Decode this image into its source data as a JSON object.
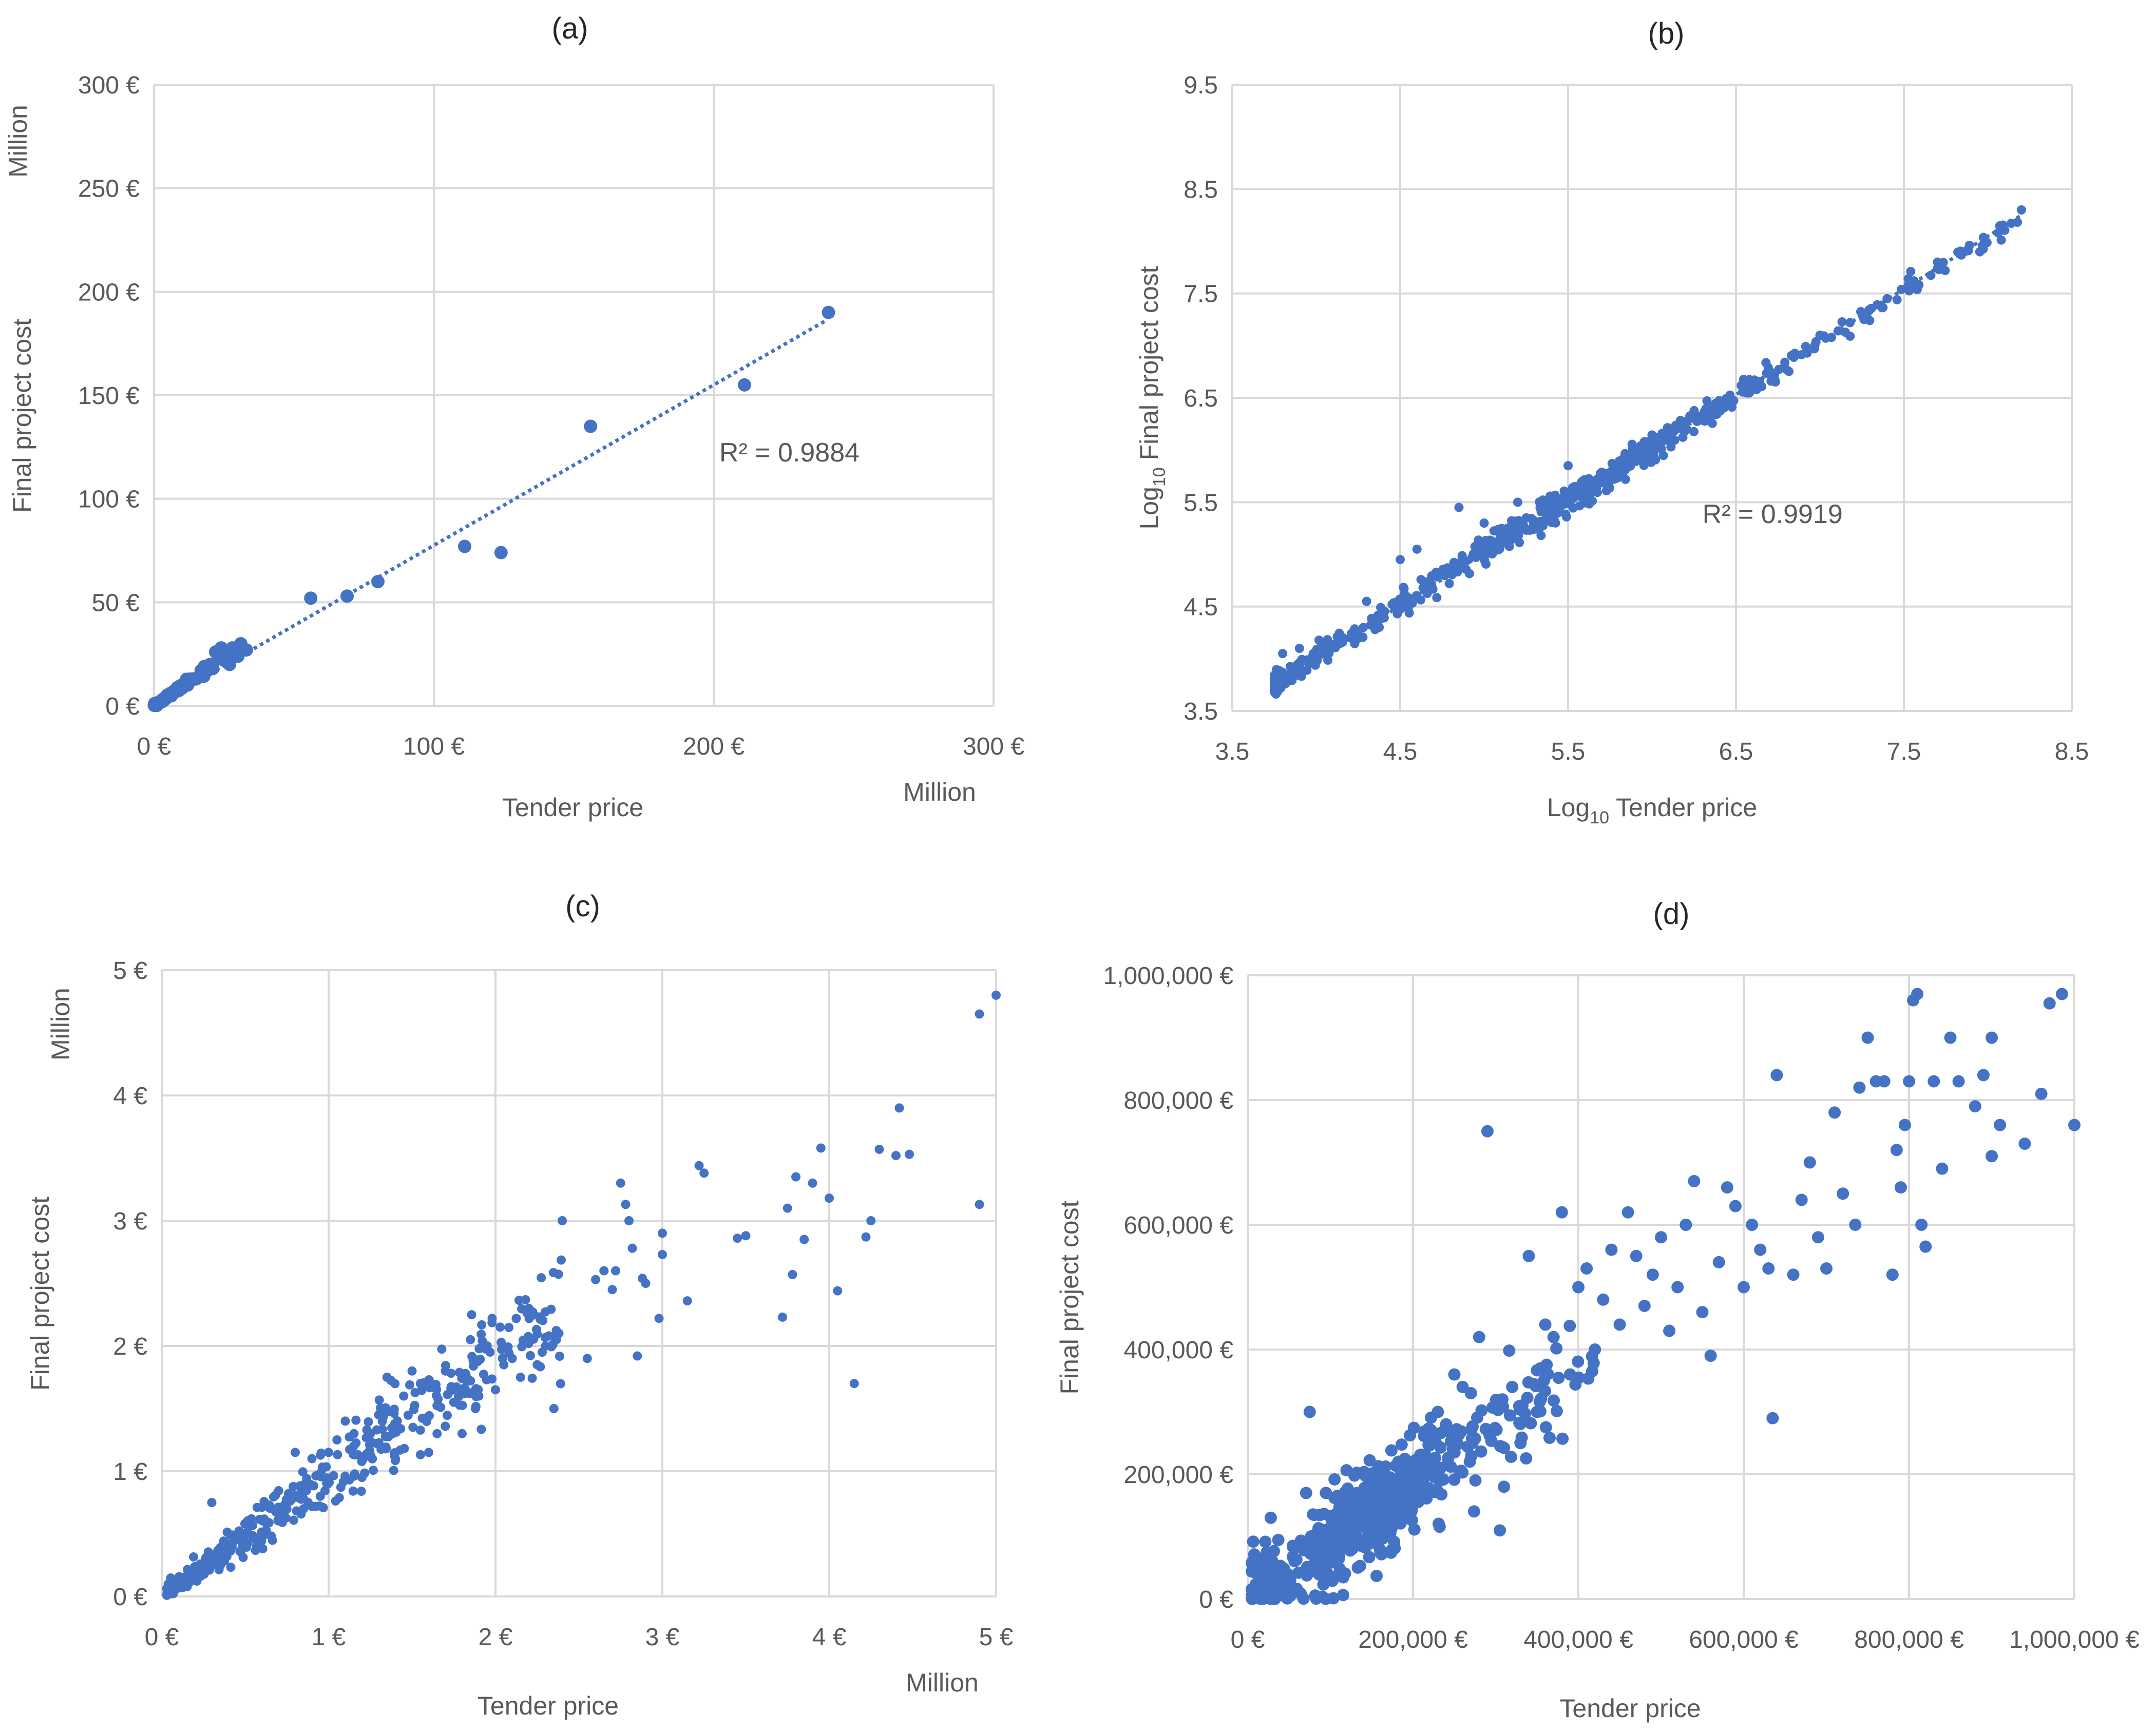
{
  "figure": {
    "panels": [
      "(a)",
      "(b)",
      "(c)",
      "(d)"
    ]
  },
  "colors": {
    "marker": "#4472C4",
    "grid": "#D9D9D9",
    "text": "#595959",
    "title": "#262626"
  },
  "chart_data": [
    {
      "id": "a",
      "panel_label": "(a)",
      "type": "scatter",
      "xlabel": "Tender price",
      "ylabel": "Final project cost",
      "x_unit_label": "Million",
      "y_unit_label": "Million",
      "xlim": [
        0,
        300
      ],
      "ylim": [
        0,
        300
      ],
      "xticks": [
        0,
        100,
        200,
        300
      ],
      "yticks": [
        0,
        50,
        100,
        150,
        200,
        250,
        300
      ],
      "xtick_labels": [
        "0 €",
        "100 €",
        "200 €",
        "300 €"
      ],
      "ytick_labels": [
        "0 €",
        "50 €",
        "100 €",
        "150 €",
        "200 €",
        "250 €",
        "300 €"
      ],
      "annotation": "R² = 0.9884",
      "annotation_at": [
        202,
        118
      ],
      "trendline": {
        "style": "dotted",
        "from": [
          0,
          0
        ],
        "to": [
          240,
          186
        ]
      },
      "cluster": {
        "n": 60,
        "xmax": 18,
        "slope": 0.95,
        "noise": 0.6,
        "seed": 11
      },
      "points": [
        [
          241,
          190
        ],
        [
          211,
          155
        ],
        [
          156,
          135
        ],
        [
          124,
          74
        ],
        [
          111,
          77
        ],
        [
          80,
          60
        ],
        [
          69,
          53
        ],
        [
          56,
          52
        ],
        [
          33,
          27
        ],
        [
          31,
          30
        ],
        [
          30,
          24
        ],
        [
          28,
          28
        ],
        [
          27,
          20
        ],
        [
          26,
          25
        ],
        [
          25,
          22
        ],
        [
          24,
          28
        ],
        [
          23,
          23
        ],
        [
          22,
          26
        ],
        [
          21,
          18
        ],
        [
          20,
          20
        ],
        [
          19,
          17
        ],
        [
          18,
          19
        ],
        [
          17,
          15
        ],
        [
          16,
          14
        ],
        [
          15,
          13
        ],
        [
          14,
          13
        ],
        [
          13,
          12
        ],
        [
          12,
          10
        ],
        [
          11,
          10
        ],
        [
          10,
          9
        ],
        [
          9,
          8
        ],
        [
          8,
          7
        ],
        [
          7,
          7
        ],
        [
          6,
          6
        ],
        [
          5,
          5
        ],
        [
          4,
          4
        ],
        [
          3,
          3
        ],
        [
          2,
          2
        ],
        [
          1,
          1
        ]
      ]
    },
    {
      "id": "b",
      "panel_label": "(b)",
      "type": "scatter",
      "xlabel_main": "Log",
      "xlabel_sub": "10",
      "xlabel_rest": " Tender price",
      "ylabel_main": "Log",
      "ylabel_sub": "10",
      "ylabel_rest": " Final project cost",
      "xlim": [
        3.5,
        8.5
      ],
      "ylim": [
        3.5,
        9.5
      ],
      "xticks": [
        3.5,
        4.5,
        5.5,
        6.5,
        7.5,
        8.5
      ],
      "yticks": [
        3.5,
        4.5,
        5.5,
        6.5,
        7.5,
        8.5,
        9.5
      ],
      "xtick_labels": [
        "3.5",
        "4.5",
        "5.5",
        "6.5",
        "7.5",
        "8.5"
      ],
      "ytick_labels": [
        "3.5",
        "4.5",
        "5.5",
        "6.5",
        "7.5",
        "8.5",
        "9.5"
      ],
      "annotation": "R² = 0.9919",
      "annotation_at": [
        6.3,
        5.3
      ],
      "trendline": {
        "style": "dotted",
        "from": [
          3.75,
          3.75
        ],
        "to": [
          8.2,
          8.25
        ]
      },
      "cluster": {
        "n": 650,
        "xmin": 3.75,
        "xmax": 8.2,
        "slope": 1.0,
        "intercept": 0.02,
        "noise": 0.06,
        "dense_center": 5.6,
        "seed": 23
      },
      "points": [
        [
          3.75,
          3.8
        ],
        [
          3.8,
          4.05
        ],
        [
          3.9,
          4.1
        ],
        [
          4.3,
          4.55
        ],
        [
          4.5,
          4.95
        ],
        [
          4.6,
          5.05
        ],
        [
          4.85,
          5.45
        ],
        [
          5.0,
          5.3
        ],
        [
          5.2,
          5.5
        ],
        [
          5.5,
          5.85
        ],
        [
          8.2,
          8.3
        ],
        [
          7.7,
          7.8
        ],
        [
          7.4,
          7.45
        ],
        [
          7.0,
          7.1
        ]
      ]
    },
    {
      "id": "c",
      "panel_label": "(c)",
      "type": "scatter",
      "xlabel": "Tender price",
      "ylabel": "Final project cost",
      "x_unit_label": "Million",
      "y_unit_label": "Million",
      "xlim": [
        0,
        5
      ],
      "ylim": [
        0,
        5
      ],
      "xticks": [
        0,
        1,
        2,
        3,
        4,
        5
      ],
      "yticks": [
        0,
        1,
        2,
        3,
        4,
        5
      ],
      "xtick_labels": [
        "0 €",
        "1 €",
        "2 €",
        "3 €",
        "4 €",
        "5 €"
      ],
      "ytick_labels": [
        "0 €",
        "1 €",
        "2 €",
        "3 €",
        "4 €",
        "5 €"
      ],
      "cluster": {
        "n": 420,
        "xmin": 0.03,
        "xmax": 2.4,
        "slope": 0.95,
        "noise": 0.09,
        "seed": 37
      },
      "points": [
        [
          5.0,
          4.8
        ],
        [
          4.9,
          4.65
        ],
        [
          4.9,
          3.13
        ],
        [
          4.48,
          3.53
        ],
        [
          4.42,
          3.9
        ],
        [
          4.4,
          3.52
        ],
        [
          4.3,
          3.57
        ],
        [
          4.25,
          3.0
        ],
        [
          4.22,
          2.87
        ],
        [
          4.15,
          1.7
        ],
        [
          4.05,
          2.44
        ],
        [
          4.0,
          3.18
        ],
        [
          3.95,
          3.58
        ],
        [
          3.9,
          3.3
        ],
        [
          3.85,
          2.85
        ],
        [
          3.8,
          3.35
        ],
        [
          3.78,
          2.57
        ],
        [
          3.72,
          2.23
        ],
        [
          3.75,
          3.1
        ],
        [
          3.5,
          2.88
        ],
        [
          3.45,
          2.86
        ],
        [
          3.25,
          3.38
        ],
        [
          3.22,
          3.44
        ],
        [
          3.15,
          2.36
        ],
        [
          3.0,
          2.9
        ],
        [
          3.0,
          2.73
        ],
        [
          2.98,
          2.22
        ],
        [
          2.9,
          2.5
        ],
        [
          2.88,
          2.54
        ],
        [
          2.85,
          1.92
        ],
        [
          2.82,
          2.78
        ],
        [
          2.8,
          3.0
        ],
        [
          2.78,
          3.13
        ],
        [
          2.75,
          3.3
        ],
        [
          2.72,
          2.6
        ],
        [
          2.7,
          2.45
        ],
        [
          2.65,
          2.6
        ],
        [
          2.6,
          2.53
        ],
        [
          2.55,
          1.9
        ],
        [
          2.4,
          3.0
        ],
        [
          2.38,
          2.1
        ],
        [
          2.35,
          1.5
        ],
        [
          2.32,
          2.08
        ],
        [
          2.3,
          2.0
        ],
        [
          2.28,
          1.95
        ],
        [
          2.25,
          1.85
        ],
        [
          2.2,
          2.3
        ],
        [
          2.15,
          1.75
        ],
        [
          2.1,
          1.9
        ],
        [
          2.05,
          1.85
        ],
        [
          2.0,
          1.65
        ],
        [
          1.98,
          2.22
        ],
        [
          1.95,
          2.0
        ],
        [
          1.9,
          1.6
        ],
        [
          1.88,
          1.5
        ],
        [
          1.85,
          2.05
        ],
        [
          1.82,
          1.78
        ],
        [
          1.8,
          1.3
        ],
        [
          1.75,
          1.55
        ],
        [
          1.7,
          1.8
        ],
        [
          1.65,
          1.3
        ],
        [
          1.6,
          1.15
        ],
        [
          1.55,
          1.7
        ],
        [
          1.5,
          1.8
        ],
        [
          1.45,
          1.6
        ],
        [
          1.4,
          1.1
        ],
        [
          1.35,
          1.75
        ],
        [
          1.3,
          1.45
        ],
        [
          1.25,
          1.3
        ],
        [
          1.2,
          0.95
        ],
        [
          1.15,
          1.2
        ],
        [
          1.1,
          1.4
        ],
        [
          1.05,
          1.25
        ],
        [
          1.0,
          1.15
        ],
        [
          0.95,
          0.8
        ],
        [
          0.9,
          1.1
        ],
        [
          0.85,
          0.7
        ],
        [
          0.8,
          1.15
        ],
        [
          0.3,
          0.75
        ]
      ]
    },
    {
      "id": "d",
      "panel_label": "(d)",
      "type": "scatter",
      "xlabel": "Tender price",
      "ylabel": "Final project cost",
      "xlim": [
        0,
        1000000
      ],
      "ylim": [
        0,
        1000000
      ],
      "xticks": [
        0,
        200000,
        400000,
        600000,
        800000,
        1000000
      ],
      "yticks": [
        0,
        200000,
        400000,
        600000,
        800000,
        1000000
      ],
      "xtick_labels": [
        "0 €",
        "200,000 €",
        "400,000 €",
        "600,000 €",
        "800,000 €",
        "1,000,000 €"
      ],
      "ytick_labels": [
        "0 €",
        "200,000 €",
        "400,000 €",
        "600,000 €",
        "800,000 €",
        "1,000,000 €"
      ],
      "cluster": {
        "n": 620,
        "xmin": 5000,
        "xmax": 420000,
        "slope": 0.93,
        "noise": 38000,
        "dense_center": 150000,
        "seed": 53
      },
      "points": [
        [
          1000000,
          760000
        ],
        [
          985000,
          970000
        ],
        [
          970000,
          955000
        ],
        [
          960000,
          810000
        ],
        [
          940000,
          730000
        ],
        [
          910000,
          760000
        ],
        [
          900000,
          900000
        ],
        [
          900000,
          710000
        ],
        [
          890000,
          840000
        ],
        [
          880000,
          790000
        ],
        [
          860000,
          830000
        ],
        [
          850000,
          900000
        ],
        [
          840000,
          690000
        ],
        [
          830000,
          830000
        ],
        [
          820000,
          565000
        ],
        [
          815000,
          600000
        ],
        [
          810000,
          970000
        ],
        [
          805000,
          960000
        ],
        [
          800000,
          830000
        ],
        [
          795000,
          760000
        ],
        [
          790000,
          660000
        ],
        [
          785000,
          720000
        ],
        [
          780000,
          520000
        ],
        [
          770000,
          830000
        ],
        [
          760000,
          830000
        ],
        [
          750000,
          900000
        ],
        [
          740000,
          820000
        ],
        [
          735000,
          600000
        ],
        [
          720000,
          650000
        ],
        [
          710000,
          780000
        ],
        [
          700000,
          530000
        ],
        [
          690000,
          580000
        ],
        [
          680000,
          700000
        ],
        [
          670000,
          640000
        ],
        [
          660000,
          520000
        ],
        [
          640000,
          840000
        ],
        [
          635000,
          290000
        ],
        [
          630000,
          530000
        ],
        [
          620000,
          560000
        ],
        [
          610000,
          600000
        ],
        [
          600000,
          500000
        ],
        [
          590000,
          630000
        ],
        [
          580000,
          660000
        ],
        [
          570000,
          540000
        ],
        [
          560000,
          390000
        ],
        [
          550000,
          460000
        ],
        [
          540000,
          670000
        ],
        [
          530000,
          600000
        ],
        [
          520000,
          500000
        ],
        [
          510000,
          430000
        ],
        [
          500000,
          580000
        ],
        [
          490000,
          520000
        ],
        [
          480000,
          470000
        ],
        [
          470000,
          550000
        ],
        [
          460000,
          620000
        ],
        [
          450000,
          440000
        ],
        [
          440000,
          560000
        ],
        [
          430000,
          480000
        ],
        [
          420000,
          400000
        ],
        [
          410000,
          530000
        ],
        [
          400000,
          500000
        ],
        [
          390000,
          360000
        ],
        [
          380000,
          620000
        ],
        [
          370000,
          420000
        ],
        [
          360000,
          440000
        ],
        [
          350000,
          300000
        ],
        [
          340000,
          550000
        ],
        [
          330000,
          250000
        ],
        [
          320000,
          340000
        ],
        [
          310000,
          180000
        ],
        [
          305000,
          110000
        ],
        [
          290000,
          750000
        ],
        [
          280000,
          420000
        ],
        [
          270000,
          330000
        ],
        [
          260000,
          340000
        ],
        [
          250000,
          360000
        ],
        [
          240000,
          280000
        ],
        [
          230000,
          300000
        ],
        [
          75000,
          300000
        ],
        [
          10000,
          50000
        ],
        [
          20000,
          20000
        ],
        [
          5000,
          5000
        ]
      ]
    }
  ]
}
